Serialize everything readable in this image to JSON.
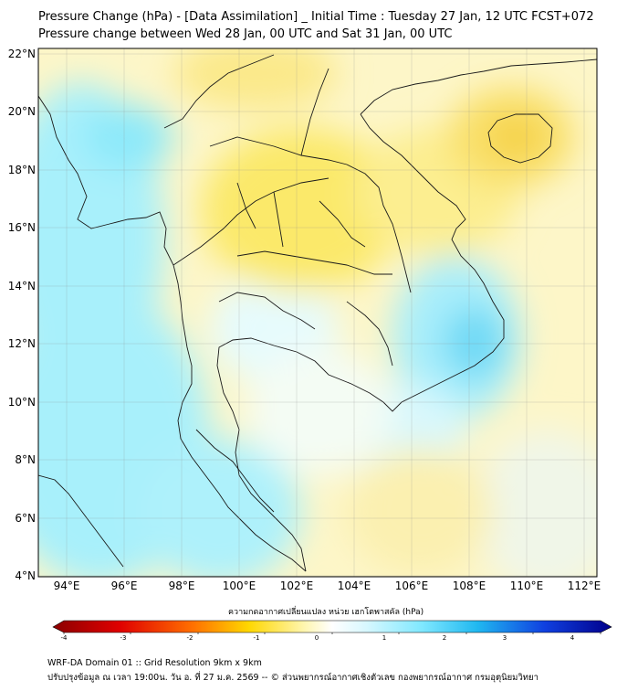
{
  "header": {
    "title": "Pressure Change (hPa) - [Data Assimilation] _ Initial Time : Tuesday 27 Jan, 12 UTC FCST+072",
    "subtitle": "Pressure change between Wed 28 Jan, 00 UTC and Sat 31 Jan, 00 UTC"
  },
  "map": {
    "lat_labels": [
      "22°N",
      "20°N",
      "18°N",
      "16°N",
      "14°N",
      "12°N",
      "10°N",
      "8°N",
      "6°N",
      "4°N"
    ],
    "lon_labels": [
      "94°E",
      "96°E",
      "98°E",
      "100°E",
      "102°E",
      "104°E",
      "106°E",
      "108°E",
      "110°E",
      "112°E"
    ]
  },
  "colorbar": {
    "title": "ความกดอากาศเปลี่ยนแปลง หน่วย เฮกโตพาสคัล (hPa)",
    "ticks": [
      "-4",
      "-3",
      "-2",
      "-1",
      "0",
      "1",
      "2",
      "3",
      "4"
    ]
  },
  "footer": {
    "line1": "WRF-DA Domain 01 :: Grid Resolution 9km x 9km",
    "line2": "ปรับปรุงข้อมูล ณ เวลา 19:00น. วัน อ. ที่ 27 ม.ค. 2569 -- © ส่วนพยากรณ์อากาศเชิงตัวเลข กองพยากรณ์อากาศ กรมอุตุนิยมวิทยา"
  },
  "colors": {
    "negative_max": "#8b0000",
    "neutral": "#ffffff",
    "positive_max": "#00008b"
  }
}
